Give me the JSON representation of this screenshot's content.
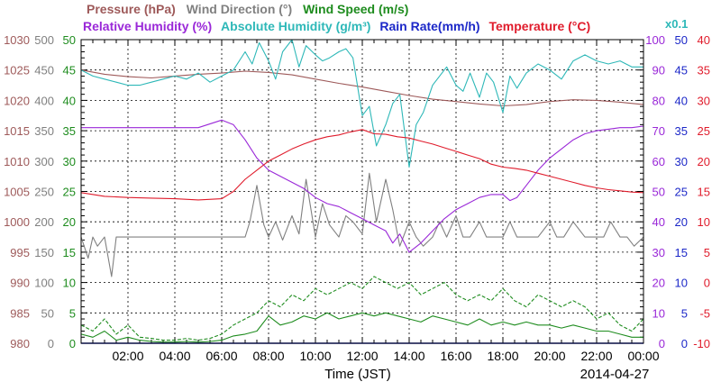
{
  "chart_data": {
    "type": "line",
    "legend_row1": [
      {
        "label": "Pressure (hPa)",
        "color": "#9e5a5a"
      },
      {
        "label": "Wind Direction (°)",
        "color": "#808080"
      },
      {
        "label": "Wind Speed (m/s)",
        "color": "#1e8c1e"
      }
    ],
    "legend_row2": [
      {
        "label": "Relative Humidity (%)",
        "color": "#9a28d8"
      },
      {
        "label": "Absolute Humidity (g/m³)",
        "color": "#2eb8b8"
      },
      {
        "label": "Rain Rate(mm/h)",
        "color": "#1c28c8"
      },
      {
        "label": "Temperature (°C)",
        "color": "#e01c2c"
      }
    ],
    "scale_note": "x0.1",
    "xlabel": "Time (JST)",
    "date": "2014-04-27",
    "xlim": [
      0,
      24
    ],
    "x_ticks": [
      "02:00",
      "04:00",
      "06:00",
      "08:00",
      "10:00",
      "12:00",
      "14:00",
      "16:00",
      "18:00",
      "20:00",
      "22:00",
      "00:00"
    ],
    "left_axes": [
      {
        "name": "Pressure (hPa)",
        "color": "#9e5a5a",
        "ticks": [
          "980",
          "985",
          "990",
          "995",
          "1000",
          "1005",
          "1010",
          "1015",
          "1020",
          "1025",
          "1030"
        ]
      },
      {
        "name": "Wind Direction (°)",
        "color": "#808080",
        "ticks": [
          "0",
          "50",
          "100",
          "150",
          "200",
          "250",
          "300",
          "350",
          "400",
          "450",
          "500"
        ]
      },
      {
        "name": "Wind Speed (m/s)",
        "color": "#1e8c1e",
        "ticks": [
          "0",
          "5",
          "10",
          "15",
          "20",
          "25",
          "30",
          "35",
          "40",
          "45",
          "50"
        ]
      }
    ],
    "right_axes": [
      {
        "name": "Relative Humidity (%)",
        "color": "#9a28d8",
        "ticks": [
          "0",
          "10",
          "20",
          "30",
          "40",
          "50",
          "60",
          "70",
          "80",
          "90",
          "100"
        ]
      },
      {
        "name": "Rain Rate(mm/h)",
        "color": "#1c28c8",
        "ticks": [
          "0",
          "5",
          "10",
          "15",
          "20",
          "25",
          "30",
          "35",
          "40",
          "45",
          "50"
        ]
      },
      {
        "name": "Temperature (°C)",
        "color": "#e01c2c",
        "ticks": [
          "-10",
          "-5",
          "0",
          "5",
          "10",
          "15",
          "20",
          "25",
          "30",
          "35",
          "40"
        ]
      }
    ],
    "series": [
      {
        "name": "Pressure (hPa)",
        "color": "#9e5a5a",
        "axis": "pressure",
        "ylim": [
          980,
          1030
        ],
        "x": [
          0,
          1,
          2,
          3,
          4,
          5,
          6,
          7,
          8,
          9,
          10,
          11,
          12,
          13,
          14,
          15,
          16,
          17,
          18,
          19,
          20,
          21,
          22,
          23,
          24
        ],
        "y": [
          1025,
          1024.3,
          1023.9,
          1023.7,
          1024,
          1024.3,
          1024.5,
          1024.8,
          1024.6,
          1024.2,
          1023.5,
          1022.8,
          1022.2,
          1021.5,
          1020.8,
          1020.2,
          1019.8,
          1019.4,
          1019.1,
          1019.3,
          1019.8,
          1020.1,
          1020,
          1019.7,
          1019.3
        ]
      },
      {
        "name": "Wind Direction (°)",
        "color": "#808080",
        "axis": "wind_direction",
        "ylim": [
          0,
          500
        ],
        "x": [
          0,
          0.3,
          0.5,
          0.7,
          1,
          1.3,
          1.5,
          1.8,
          2,
          2.5,
          3,
          3.5,
          4,
          4.5,
          5,
          5.5,
          6,
          6.5,
          7,
          7.2,
          7.5,
          7.8,
          8,
          8.3,
          8.6,
          9,
          9.3,
          9.6,
          10,
          10.3,
          10.6,
          11,
          11.3,
          11.6,
          12,
          12.3,
          12.6,
          13,
          13.3,
          13.6,
          14,
          14.3,
          14.6,
          15,
          15.3,
          15.6,
          16,
          16.3,
          16.6,
          17,
          17.3,
          17.6,
          18,
          18.3,
          18.6,
          19,
          19.5,
          20,
          20.3,
          20.6,
          21,
          21.5,
          22,
          22.3,
          22.6,
          23,
          23.3,
          23.6,
          24
        ],
        "y": [
          175,
          140,
          175,
          160,
          175,
          110,
          175,
          175,
          175,
          175,
          175,
          175,
          175,
          175,
          175,
          175,
          175,
          175,
          175,
          200,
          260,
          195,
          175,
          200,
          170,
          210,
          180,
          270,
          175,
          230,
          195,
          175,
          210,
          200,
          180,
          280,
          200,
          270,
          220,
          160,
          200,
          175,
          160,
          175,
          200,
          175,
          210,
          175,
          175,
          200,
          175,
          175,
          175,
          200,
          175,
          175,
          175,
          200,
          175,
          175,
          200,
          175,
          175,
          175,
          200,
          175,
          175,
          160,
          175
        ]
      },
      {
        "name": "Wind Speed (m/s)",
        "color": "#1e8c1e",
        "axis": "wind_speed",
        "ylim": [
          0,
          50
        ],
        "x": [
          0,
          0.5,
          1,
          1.5,
          2,
          2.5,
          3,
          3.5,
          4,
          4.5,
          5,
          5.5,
          6,
          6.5,
          7,
          7.5,
          8,
          8.5,
          9,
          9.5,
          10,
          10.5,
          11,
          11.5,
          12,
          12.5,
          13,
          13.5,
          14,
          14.5,
          15,
          15.5,
          16,
          16.5,
          17,
          17.5,
          18,
          18.5,
          19,
          19.5,
          20,
          20.5,
          21,
          21.5,
          22,
          22.5,
          23,
          23.5,
          24
        ],
        "y": [
          1.5,
          1,
          2,
          0.5,
          1,
          0.5,
          0.3,
          0.2,
          0.2,
          0.3,
          0.2,
          0.3,
          0.5,
          1.2,
          1.5,
          2,
          4.5,
          3,
          3.5,
          4.5,
          4,
          5,
          4,
          4.5,
          5,
          4.5,
          5,
          4.5,
          4,
          3.5,
          4.5,
          4,
          3.5,
          3,
          4,
          3,
          3.5,
          3,
          3.5,
          3,
          3,
          2.5,
          3,
          2.5,
          2,
          2,
          1.5,
          1,
          1
        ]
      },
      {
        "name": "Wind Speed gust (m/s)",
        "color": "#1e8c1e",
        "axis": "wind_speed",
        "ylim": [
          0,
          50
        ],
        "dashed": true,
        "x": [
          0,
          0.5,
          1,
          1.5,
          2,
          2.5,
          3,
          3.5,
          4,
          4.5,
          5,
          5.5,
          6,
          6.5,
          7,
          7.5,
          8,
          8.5,
          9,
          9.5,
          10,
          10.5,
          11,
          11.5,
          12,
          12.5,
          13,
          13.5,
          14,
          14.5,
          15,
          15.5,
          16,
          16.5,
          17,
          17.5,
          18,
          18.5,
          19,
          19.5,
          20,
          20.5,
          21,
          21.5,
          22,
          22.5,
          23,
          23.5,
          24
        ],
        "y": [
          3,
          2,
          4,
          1.5,
          3,
          1,
          0.8,
          0.5,
          0.5,
          0.8,
          0.5,
          0.8,
          1.5,
          3,
          4,
          5,
          7,
          6,
          8,
          7,
          9,
          8,
          9,
          10,
          9,
          11,
          10,
          9,
          10,
          8,
          9,
          10,
          8,
          7,
          8,
          7,
          9,
          7,
          6,
          8,
          7,
          6,
          7,
          6,
          4,
          5,
          3,
          2,
          4
        ]
      },
      {
        "name": "Relative Humidity (%)",
        "color": "#9a28d8",
        "axis": "rh",
        "ylim": [
          0,
          100
        ],
        "x": [
          0,
          1,
          2,
          3,
          4,
          5,
          6,
          6.5,
          7,
          7.5,
          8,
          8.5,
          9,
          9.5,
          10,
          10.5,
          11,
          11.5,
          12,
          12.5,
          13,
          13.3,
          13.6,
          14,
          14.5,
          15,
          15.5,
          16,
          16.5,
          17,
          17.5,
          18,
          18.3,
          18.6,
          19,
          19.5,
          20,
          20.5,
          21,
          21.5,
          22,
          22.5,
          23,
          23.5,
          24
        ],
        "y": [
          71,
          71,
          71,
          71,
          71,
          71,
          73.5,
          72,
          67,
          61,
          57,
          55,
          53,
          51,
          48,
          46,
          45,
          43,
          41,
          39,
          37,
          33,
          36,
          30,
          33,
          37,
          41,
          44,
          46,
          48,
          49,
          49,
          47,
          48,
          52,
          57,
          61,
          64,
          67,
          69,
          70,
          70.5,
          71,
          71,
          71.5
        ]
      },
      {
        "name": "Absolute Humidity (g/m³)",
        "color": "#2eb8b8",
        "axis": "ah",
        "ylim": [
          0,
          10
        ],
        "x": [
          0,
          0.5,
          1,
          1.5,
          2,
          2.5,
          3,
          3.5,
          4,
          4.5,
          5,
          5.5,
          6,
          6.5,
          7,
          7.3,
          7.6,
          8,
          8.3,
          8.6,
          9,
          9.3,
          9.6,
          10,
          10.3,
          10.6,
          11,
          11.3,
          11.6,
          12,
          12.3,
          12.6,
          13,
          13.3,
          13.6,
          14,
          14.3,
          14.6,
          15,
          15.3,
          15.6,
          16,
          16.3,
          16.6,
          17,
          17.3,
          17.6,
          18,
          18.3,
          18.6,
          19,
          19.5,
          20,
          20.5,
          21,
          21.5,
          22,
          22.5,
          23,
          23.5,
          24
        ],
        "y": [
          9,
          8.8,
          8.7,
          8.6,
          8.5,
          8.5,
          8.6,
          8.7,
          8.8,
          8.7,
          8.9,
          8.6,
          8.8,
          9,
          9.6,
          9.2,
          9.9,
          9.3,
          8.7,
          9.6,
          10,
          9.1,
          9.8,
          9.5,
          9.3,
          9.4,
          9.6,
          9.7,
          9.4,
          7.5,
          7.8,
          6.5,
          7.2,
          7.9,
          8.2,
          5.8,
          7.2,
          7.6,
          8.5,
          8.8,
          9.1,
          8.5,
          8.3,
          8.9,
          8.1,
          8.9,
          8.6,
          7.6,
          8.8,
          8.4,
          8.9,
          9.2,
          9,
          8.7,
          9.3,
          9.5,
          9.3,
          9.2,
          9.3,
          9.1,
          9.1
        ]
      },
      {
        "name": "Rain Rate(mm/h)",
        "color": "#1c28c8",
        "axis": "rain",
        "ylim": [
          0,
          50
        ],
        "x": [
          0,
          24
        ],
        "y": [
          0,
          0
        ]
      },
      {
        "name": "Temperature (°C)",
        "color": "#e01c2c",
        "axis": "temp",
        "ylim": [
          -10,
          40
        ],
        "x": [
          0,
          1,
          2,
          3,
          4,
          5,
          6,
          6.5,
          7,
          7.5,
          8,
          8.5,
          9,
          9.5,
          10,
          10.5,
          11,
          11.5,
          12,
          12.5,
          13,
          13.5,
          14,
          14.5,
          15,
          15.5,
          16,
          16.5,
          17,
          17.5,
          18,
          18.5,
          19,
          19.5,
          20,
          20.5,
          21,
          21.5,
          22,
          22.5,
          23,
          23.5,
          24
        ],
        "y": [
          14.8,
          14.2,
          14,
          13.9,
          13.8,
          13.6,
          13.8,
          15,
          17,
          18.5,
          20,
          21,
          22,
          22.8,
          23.5,
          24,
          24.3,
          24.8,
          25.2,
          24.5,
          24.4,
          24,
          23.8,
          23.3,
          22.8,
          22.2,
          21.6,
          21,
          20.4,
          19.5,
          19,
          18.8,
          18.5,
          18,
          17.5,
          17,
          16.5,
          16,
          15.6,
          15.3,
          15.1,
          14.9,
          14.8
        ]
      }
    ]
  }
}
